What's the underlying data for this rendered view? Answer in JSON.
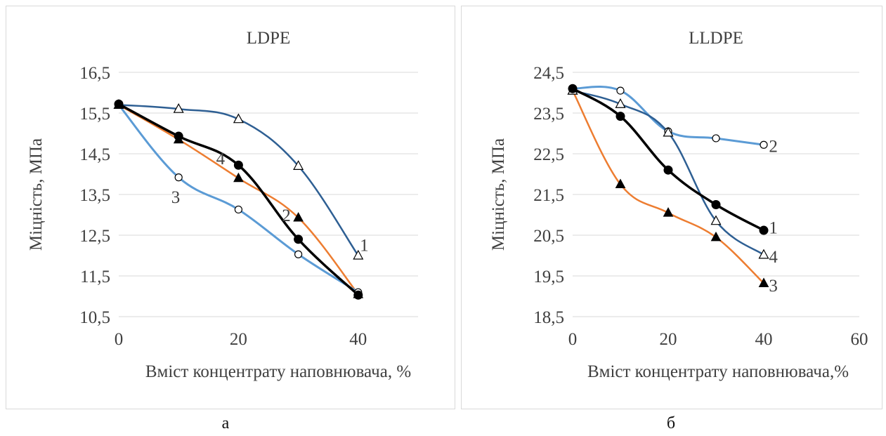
{
  "captions": {
    "a": "а",
    "b": "б"
  },
  "chart_data": [
    {
      "type": "line",
      "title": "LDPE",
      "xlabel": "Вміст концентрату наповнювача, %",
      "ylabel": "Міцність, МПа",
      "xlim": [
        0,
        50
      ],
      "ylim": [
        10.5,
        16.5
      ],
      "xticks": [
        "0",
        "20",
        "40"
      ],
      "xtick_values": [
        0,
        20,
        40
      ],
      "yticks": [
        "10,5",
        "11,5",
        "12,5",
        "13,5",
        "14,5",
        "15,5",
        "16,5"
      ],
      "ytick_values": [
        10.5,
        11.5,
        12.5,
        13.5,
        14.5,
        15.5,
        16.5
      ],
      "grid": "horizontal",
      "series": [
        {
          "name": "1",
          "color": "#2e5f93",
          "marker": "triangle-open",
          "width": 2.5,
          "x": [
            0,
            10,
            20,
            30,
            40
          ],
          "y": [
            15.7,
            15.6,
            15.35,
            14.2,
            12.0
          ]
        },
        {
          "name": "2",
          "color": "#ed7d31",
          "marker": "triangle-filled",
          "width": 2.5,
          "x": [
            0,
            10,
            20,
            30,
            40
          ],
          "y": [
            15.7,
            14.85,
            13.9,
            12.93,
            11.05
          ]
        },
        {
          "name": "3",
          "color": "#5b9bd5",
          "marker": "circle-open",
          "width": 3,
          "x": [
            0,
            10,
            20,
            30,
            40
          ],
          "y": [
            15.7,
            13.92,
            13.13,
            12.03,
            11.1
          ]
        },
        {
          "name": "4",
          "color": "#000000",
          "marker": "circle-filled",
          "width": 3.5,
          "x": [
            0,
            10,
            20,
            30,
            40
          ],
          "y": [
            15.72,
            14.93,
            14.22,
            12.4,
            11.03
          ]
        }
      ],
      "annotations": [
        {
          "text": "1",
          "x": 41,
          "y": 12.27
        },
        {
          "text": "2",
          "x": 28,
          "y": 13.0
        },
        {
          "text": "3",
          "x": 9.5,
          "y": 13.45
        },
        {
          "text": "4",
          "x": 17,
          "y": 14.4
        }
      ]
    },
    {
      "type": "line",
      "title": "LLDPE",
      "xlabel": "Вміст концентрату наповнювача,%",
      "ylabel": "Міцність, МПа",
      "xlim": [
        0,
        60
      ],
      "ylim": [
        18.5,
        24.5
      ],
      "xticks": [
        "0",
        "20",
        "40",
        "60"
      ],
      "xtick_values": [
        0,
        20,
        40,
        60
      ],
      "yticks": [
        "18,5",
        "19,5",
        "20,5",
        "21,5",
        "22,5",
        "23,5",
        "24,5"
      ],
      "ytick_values": [
        18.5,
        19.5,
        20.5,
        21.5,
        22.5,
        23.5,
        24.5
      ],
      "grid": "horizontal",
      "series": [
        {
          "name": "1",
          "color": "#000000",
          "marker": "circle-filled",
          "width": 3.5,
          "x": [
            0,
            10,
            20,
            30,
            40
          ],
          "y": [
            24.1,
            23.42,
            22.1,
            21.25,
            20.62
          ]
        },
        {
          "name": "2",
          "color": "#5b9bd5",
          "marker": "circle-open",
          "width": 3,
          "x": [
            0,
            10,
            20,
            30,
            40
          ],
          "y": [
            24.1,
            24.05,
            23.05,
            22.88,
            22.72
          ]
        },
        {
          "name": "3",
          "color": "#ed7d31",
          "marker": "triangle-filled",
          "width": 2.5,
          "x": [
            0,
            10,
            20,
            30,
            40
          ],
          "y": [
            24.05,
            21.75,
            21.05,
            20.45,
            19.32
          ]
        },
        {
          "name": "4",
          "color": "#2e5f93",
          "marker": "triangle-open",
          "width": 2.5,
          "x": [
            0,
            10,
            20,
            30,
            40
          ],
          "y": [
            24.05,
            23.72,
            23.02,
            20.85,
            20.02
          ]
        }
      ],
      "annotations": [
        {
          "text": "2",
          "x": 42,
          "y": 22.7
        },
        {
          "text": "1",
          "x": 42,
          "y": 20.7
        },
        {
          "text": "4",
          "x": 42,
          "y": 19.98
        },
        {
          "text": "3",
          "x": 42,
          "y": 19.28
        }
      ]
    }
  ]
}
